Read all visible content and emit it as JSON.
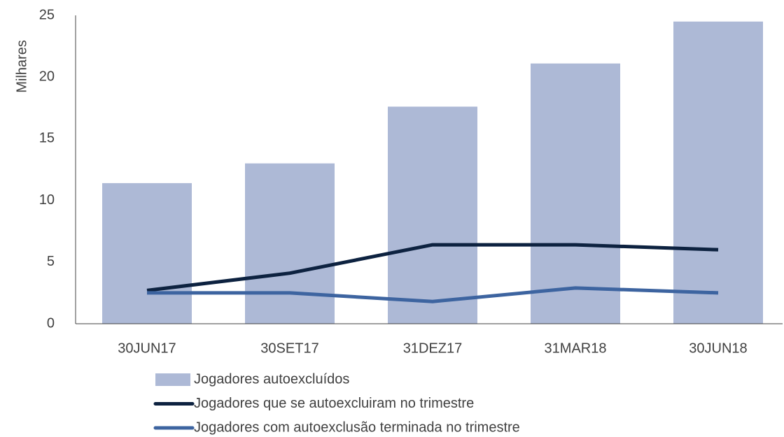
{
  "chart_data": {
    "type": "bar",
    "y_label": "Milhares",
    "categories": [
      "30JUN17",
      "30SET17",
      "31DEZ17",
      "31MAR18",
      "30JUN18"
    ],
    "series": [
      {
        "name": "Jogadores autoexcluídos",
        "type": "bar",
        "color": "#adb9d6",
        "values": [
          11.4,
          13.0,
          17.6,
          21.1,
          24.5
        ]
      },
      {
        "name": "Jogadores que se autoexcluiram no trimestre",
        "type": "line",
        "color": "#0d2240",
        "values": [
          2.7,
          4.1,
          6.4,
          6.4,
          6.0
        ]
      },
      {
        "name": "Jogadores com autoexclusão terminada no trimestre",
        "type": "line",
        "color": "#3d64a0",
        "values": [
          2.5,
          2.5,
          1.8,
          2.9,
          2.5
        ]
      }
    ],
    "ylim": [
      0,
      25
    ],
    "yticks": [
      0,
      5,
      10,
      15,
      20,
      25
    ],
    "grid": false,
    "legend": "bottom"
  }
}
